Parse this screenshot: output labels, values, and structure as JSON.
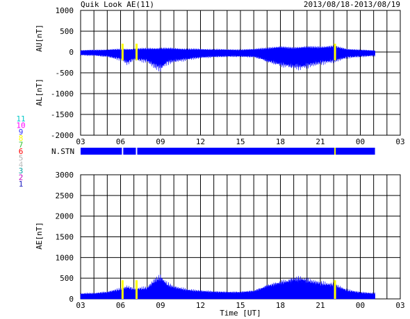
{
  "header": {
    "title": "Quik Look AE(11)",
    "date_range": "2013/08/18-2013/08/19"
  },
  "station_legend": [
    {
      "label": "11",
      "color": "#00c8c8"
    },
    {
      "label": "10",
      "color": "#ff00ff"
    },
    {
      "label": "9",
      "color": "#3030ff"
    },
    {
      "label": "8",
      "color": "#ffff00"
    },
    {
      "label": "7",
      "color": "#30c030"
    },
    {
      "label": "6",
      "color": "#ff0000"
    },
    {
      "label": "5",
      "color": "#b0b0b0"
    },
    {
      "label": "4",
      "color": "#c0c0c0"
    },
    {
      "label": "3",
      "color": "#00a0a0"
    },
    {
      "label": "2",
      "color": "#c000c0"
    },
    {
      "label": "1",
      "color": "#2020c0"
    }
  ],
  "colors": {
    "fill": "#0000ff",
    "gap": "#ffff00",
    "grid": "#000000"
  },
  "chart_data": [
    {
      "type": "area",
      "title": "",
      "ylabel_upper": "AU[nT]",
      "ylabel_lower": "AL[nT]",
      "xlabel": "",
      "x_ticks": [
        "03",
        "06",
        "09",
        "12",
        "15",
        "18",
        "21",
        "00",
        "03"
      ],
      "x_range_hours": [
        3,
        27
      ],
      "data_end_hour": 25.1,
      "ylim": [
        -2000,
        1000
      ],
      "y_ticks": [
        "1000",
        "500",
        "0",
        "-500",
        "-1000",
        "-1500",
        "-2000"
      ],
      "au_series": [
        [
          3,
          40
        ],
        [
          4,
          50
        ],
        [
          5,
          60
        ],
        [
          6,
          70
        ],
        [
          7,
          80
        ],
        [
          8,
          90
        ],
        [
          9,
          100
        ],
        [
          10,
          90
        ],
        [
          11,
          80
        ],
        [
          12,
          70
        ],
        [
          13,
          70
        ],
        [
          14,
          60
        ],
        [
          15,
          60
        ],
        [
          16,
          70
        ],
        [
          17,
          110
        ],
        [
          18,
          130
        ],
        [
          19,
          120
        ],
        [
          20,
          130
        ],
        [
          21,
          140
        ],
        [
          22,
          150
        ],
        [
          23,
          80
        ],
        [
          24,
          50
        ],
        [
          25,
          40
        ]
      ],
      "al_series": [
        [
          3,
          -80
        ],
        [
          4,
          -90
        ],
        [
          5,
          -120
        ],
        [
          6,
          -200
        ],
        [
          6.5,
          -300
        ],
        [
          7,
          -200
        ],
        [
          8,
          -250
        ],
        [
          8.6,
          -400
        ],
        [
          9,
          -450
        ],
        [
          9.5,
          -300
        ],
        [
          10,
          -250
        ],
        [
          11,
          -200
        ],
        [
          12,
          -150
        ],
        [
          13,
          -130
        ],
        [
          14,
          -120
        ],
        [
          15,
          -120
        ],
        [
          16,
          -130
        ],
        [
          16.5,
          -180
        ],
        [
          17,
          -250
        ],
        [
          18,
          -350
        ],
        [
          18.5,
          -380
        ],
        [
          19,
          -400
        ],
        [
          19.5,
          -430
        ],
        [
          20,
          -380
        ],
        [
          21,
          -300
        ],
        [
          22,
          -250
        ],
        [
          23,
          -150
        ],
        [
          24,
          -120
        ],
        [
          25,
          -100
        ]
      ],
      "gaps_hours": [
        6.15,
        7.2,
        22.1
      ]
    },
    {
      "type": "bar",
      "label": "N.STN",
      "x_range_hours": [
        3,
        27
      ],
      "data_end_hour": 25.1,
      "gaps_hours": [
        6.15,
        7.2,
        22.1
      ]
    },
    {
      "type": "area",
      "title": "",
      "ylabel": "AE[nT]",
      "xlabel": "Time [UT]",
      "x_ticks": [
        "03",
        "06",
        "09",
        "12",
        "15",
        "18",
        "21",
        "00",
        "03"
      ],
      "x_range_hours": [
        3,
        27
      ],
      "data_end_hour": 25.1,
      "ylim": [
        0,
        3000
      ],
      "y_ticks": [
        "3000",
        "2500",
        "2000",
        "1500",
        "1000",
        "500",
        "0"
      ],
      "ae_series": [
        [
          3,
          130
        ],
        [
          4,
          140
        ],
        [
          5,
          170
        ],
        [
          6,
          250
        ],
        [
          6.5,
          300
        ],
        [
          7,
          250
        ],
        [
          8,
          280
        ],
        [
          8.6,
          480
        ],
        [
          9,
          550
        ],
        [
          9.5,
          380
        ],
        [
          10,
          300
        ],
        [
          11,
          230
        ],
        [
          12,
          200
        ],
        [
          13,
          180
        ],
        [
          14,
          170
        ],
        [
          15,
          170
        ],
        [
          16,
          200
        ],
        [
          16.5,
          260
        ],
        [
          17,
          330
        ],
        [
          18,
          420
        ],
        [
          18.5,
          450
        ],
        [
          19,
          500
        ],
        [
          19.5,
          520
        ],
        [
          20,
          470
        ],
        [
          21,
          400
        ],
        [
          22,
          360
        ],
        [
          23,
          220
        ],
        [
          24,
          160
        ],
        [
          25,
          140
        ]
      ],
      "gaps_hours": [
        6.15,
        7.2,
        22.1
      ]
    }
  ]
}
